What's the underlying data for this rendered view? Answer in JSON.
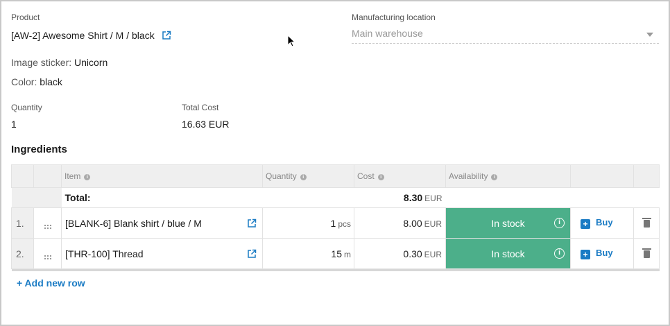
{
  "product": {
    "label": "Product",
    "value": "[AW-2] Awesome Shirt / M / black",
    "link_icon": "external-link-icon"
  },
  "manufacturing": {
    "label": "Manufacturing location",
    "value": "Main warehouse"
  },
  "attributes": [
    {
      "key": "Image sticker:",
      "value": "Unicorn"
    },
    {
      "key": "Color:",
      "value": "black"
    }
  ],
  "quantity": {
    "label": "Quantity",
    "value": "1"
  },
  "total_cost": {
    "label": "Total Cost",
    "value": "16.63 EUR"
  },
  "ingredients": {
    "title": "Ingredients",
    "columns": {
      "item": "Item",
      "quantity": "Quantity",
      "cost": "Cost",
      "availability": "Availability"
    },
    "total": {
      "label": "Total:",
      "value": "8.30",
      "currency": "EUR"
    },
    "rows": [
      {
        "index": "1.",
        "item": "[BLANK-6] Blank shirt / blue / M",
        "qty": "1",
        "unit": "pcs",
        "cost": "8.00",
        "currency": "EUR",
        "availability": "In stock",
        "buy": "Buy"
      },
      {
        "index": "2.",
        "item": "[THR-100] Thread",
        "qty": "15",
        "unit": "m",
        "cost": "0.30",
        "currency": "EUR",
        "availability": "In stock",
        "buy": "Buy"
      }
    ],
    "add_row": "+ Add new row"
  },
  "colors": {
    "in_stock": "#4caf8a",
    "link": "#1a7bc4"
  }
}
